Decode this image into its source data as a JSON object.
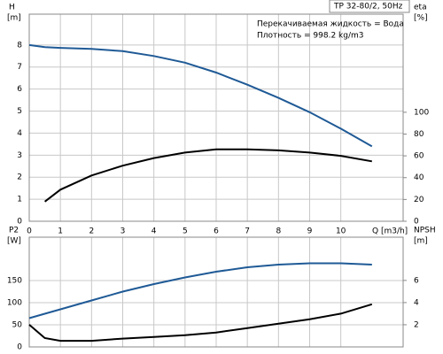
{
  "chart_data": [
    {
      "type": "line",
      "title": "TP 32-80/2, 50Hz",
      "annotations": [
        "Перекачиваемая жидкость = Вода",
        "Плотность = 998.2 kg/m3"
      ],
      "ylabel": "H",
      "yunit": "[m]",
      "y2label": "eta",
      "y2unit": "[%]",
      "xlabel": "Q [m3/h]",
      "x": [
        0,
        0.5,
        1,
        2,
        3,
        4,
        5,
        6,
        7,
        8,
        9,
        10,
        11
      ],
      "xlim": [
        0,
        12
      ],
      "xticks": [
        0,
        1,
        2,
        3,
        4,
        5,
        6,
        7,
        8,
        9,
        10
      ],
      "ylim": [
        0,
        9.4
      ],
      "yticks": [
        0,
        1,
        2,
        3,
        4,
        5,
        6,
        7,
        8
      ],
      "y2lim": [
        0,
        190
      ],
      "y2ticks": [
        0,
        20,
        40,
        60,
        80,
        100
      ],
      "grid": true,
      "series": [
        {
          "color": "#1f5a96",
          "axis": "y",
          "values": [
            8.0,
            7.9,
            7.87,
            7.82,
            7.72,
            7.5,
            7.2,
            6.75,
            6.2,
            5.6,
            4.95,
            4.2,
            3.4
          ]
        },
        {
          "color": "#000000",
          "axis": "y2",
          "values": [
            null,
            18,
            29,
            42,
            51,
            58,
            63,
            66,
            66,
            65,
            63,
            60,
            55
          ]
        }
      ]
    },
    {
      "type": "line",
      "ylabel": "P2",
      "yunit": "[W]",
      "y2label": "NPSH",
      "y2unit": "[m]",
      "x": [
        0,
        0.5,
        1,
        2,
        3,
        4,
        5,
        6,
        7,
        8,
        9,
        10,
        11
      ],
      "xlim": [
        0,
        12
      ],
      "xticks": [
        0,
        1,
        2,
        3,
        4,
        5,
        6,
        7,
        8,
        9,
        10
      ],
      "ylim": [
        0,
        248
      ],
      "yticks": [
        0,
        50,
        100,
        150
      ],
      "y2lim": [
        0,
        9.9
      ],
      "y2ticks": [
        2,
        4,
        6
      ],
      "grid": true,
      "series": [
        {
          "color": "#1f5a96",
          "axis": "y",
          "values": [
            65,
            75,
            85,
            105,
            125,
            142,
            157,
            170,
            180,
            186,
            189,
            189,
            186
          ]
        },
        {
          "color": "#000000",
          "axis": "y2",
          "values": [
            2.0,
            0.8,
            0.55,
            0.55,
            0.75,
            0.9,
            1.05,
            1.3,
            1.7,
            2.1,
            2.5,
            3.0,
            3.85
          ]
        }
      ]
    }
  ]
}
